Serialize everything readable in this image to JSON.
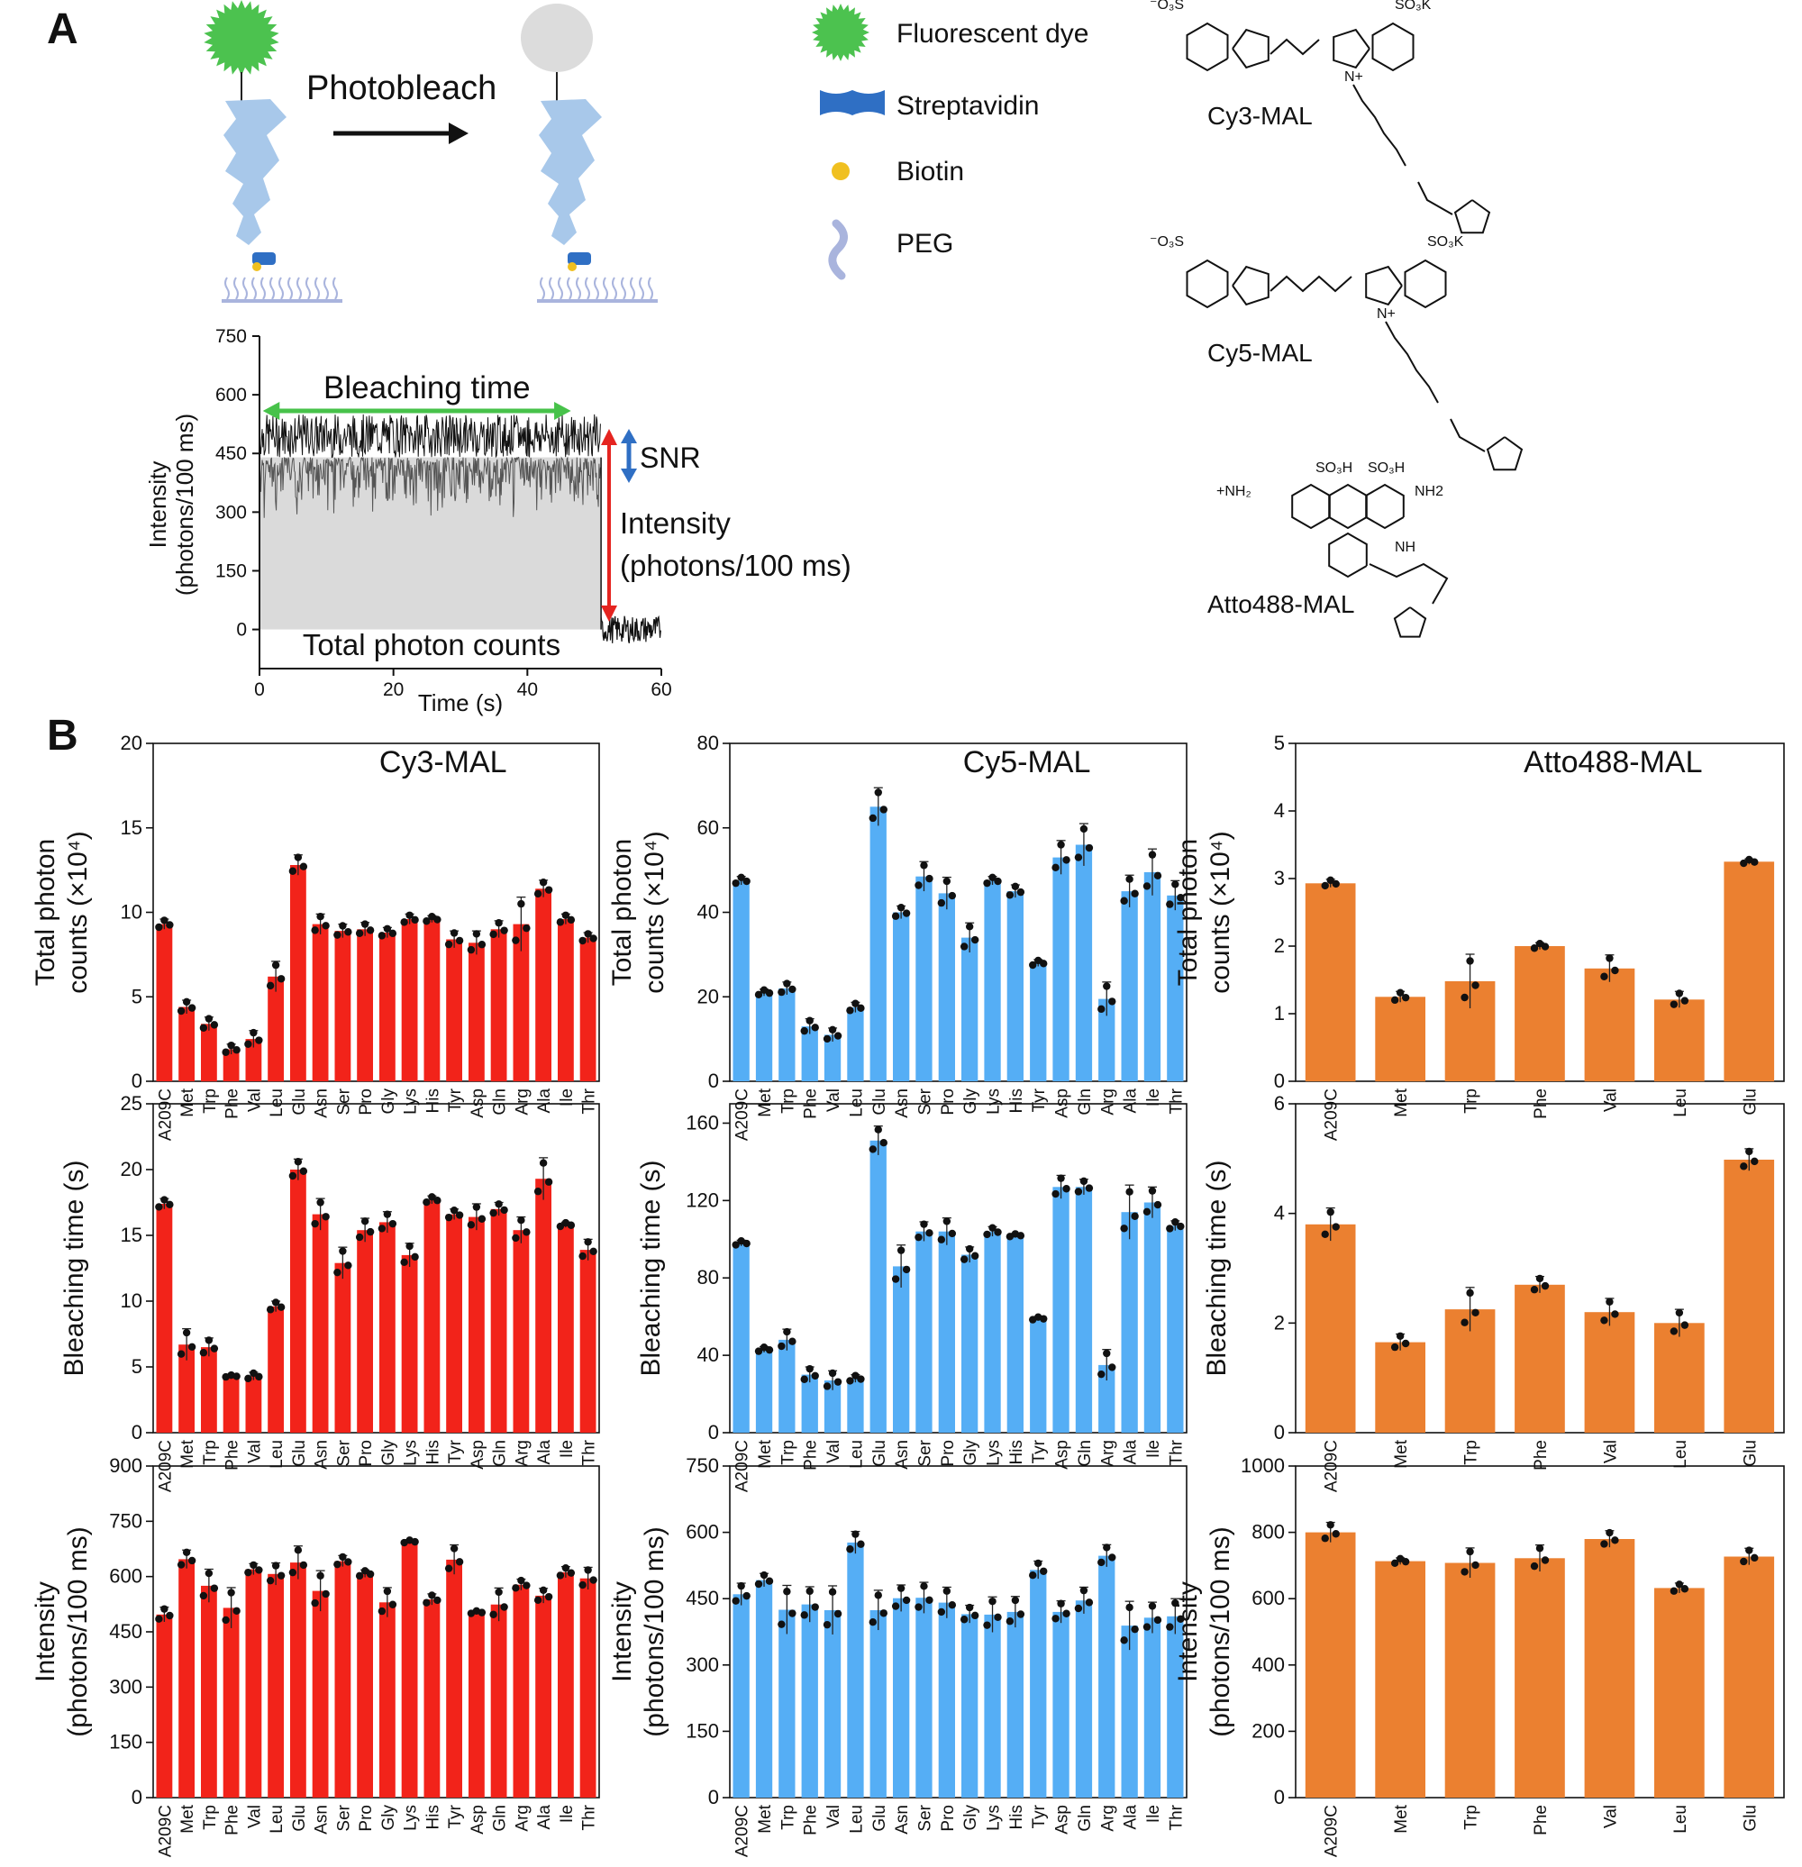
{
  "panel_labels": {
    "a": "A",
    "b": "B"
  },
  "schematic": {
    "arrow_label": "Photobleach",
    "legend": [
      {
        "icon": "star-icon",
        "label": "Fluorescent dye",
        "color": "#4cc24f"
      },
      {
        "icon": "streptavidin-icon",
        "label": "Streptavidin",
        "color": "#2f6fc4"
      },
      {
        "icon": "biotin-dot-icon",
        "label": "Biotin",
        "color": "#f0c020"
      },
      {
        "icon": "peg-chain-icon",
        "label": "PEG",
        "color": "#a9b4dd"
      }
    ],
    "bleached_color": "#dcdcdc",
    "protein_color": "#a8c8ea"
  },
  "structures": [
    {
      "name": "Cy3-MAL",
      "sulfo_left": "⁻O₃S",
      "sulfo_right": "SO₃K",
      "n_plus": "N+"
    },
    {
      "name": "Cy5-MAL",
      "sulfo_left": "⁻O₃S",
      "sulfo_right": "SO₃K",
      "n_plus": "N+"
    },
    {
      "name": "Atto488-MAL",
      "sulfo_left": "SO₃H",
      "sulfo_right": "SO₃H",
      "amine_left": "+NH₂",
      "amine_right": "NH2",
      "nh": "NH"
    }
  ],
  "trace_panel": {
    "xlabel": "Time (s)",
    "ylabel": "Intensity",
    "ylabel2": "(photons/100 ms)",
    "xticks": [
      0,
      20,
      40,
      60
    ],
    "yticks": [
      0,
      150,
      300,
      450,
      600,
      750
    ],
    "xlim": [
      0,
      60
    ],
    "ylim": [
      -100,
      750
    ],
    "bleach_time_s": 51,
    "mean_intensity": 440,
    "labels": {
      "bleaching_time": "Bleaching time",
      "snr": "SNR",
      "intensity": "Intensity",
      "intensity_units": "(photons/100 ms)",
      "total_counts": "Total photon counts"
    },
    "colors": {
      "bleach": "#47c24a",
      "snr": "#2f6fc4",
      "intensity": "#e52420",
      "fill": "#dadada"
    }
  },
  "chart_data": [
    {
      "type": "bar",
      "title": "Cy3-MAL",
      "ylabel": "Total photon",
      "ylabel2": "counts (×10⁴)",
      "ylim": [
        0,
        20
      ],
      "yticks": [
        0,
        5,
        10,
        15,
        20
      ],
      "color": "#f2231a",
      "categories": [
        "A209C",
        "Met",
        "Trp",
        "Phe",
        "Val",
        "Leu",
        "Glu",
        "Asn",
        "Ser",
        "Pro",
        "Gly",
        "Lys",
        "His",
        "Tyr",
        "Asp",
        "Gln",
        "Arg",
        "Ala",
        "Ile",
        "Thr"
      ],
      "values": [
        9.3,
        4.4,
        3.4,
        1.9,
        2.5,
        6.2,
        12.8,
        9.3,
        8.9,
        9.0,
        8.8,
        9.6,
        9.6,
        8.4,
        8.2,
        9.0,
        9.3,
        11.4,
        9.6,
        8.5
      ],
      "errors": [
        0.3,
        0.4,
        0.4,
        0.3,
        0.5,
        0.9,
        0.6,
        0.6,
        0.4,
        0.4,
        0.3,
        0.3,
        0.2,
        0.5,
        0.7,
        0.5,
        1.6,
        0.5,
        0.3,
        0.3
      ]
    },
    {
      "type": "bar",
      "title": "Cy5-MAL",
      "ylabel": "Total photon",
      "ylabel2": "counts (×10⁴)",
      "ylim": [
        0,
        80
      ],
      "yticks": [
        0,
        20,
        40,
        60,
        80
      ],
      "color": "#55aef5",
      "categories": [
        "A209C",
        "Met",
        "Trp",
        "Phe",
        "Val",
        "Leu",
        "Glu",
        "Asn",
        "Ser",
        "Pro",
        "Gly",
        "Lys",
        "His",
        "Tyr",
        "Asp",
        "Gln",
        "Arg",
        "Ala",
        "Ile",
        "Thr"
      ],
      "values": [
        47.5,
        21.0,
        22.0,
        13.0,
        11.0,
        17.5,
        65.0,
        40.0,
        48.5,
        44.5,
        34.0,
        47.5,
        45.0,
        28.0,
        53.0,
        56.0,
        19.5,
        45.0,
        49.5,
        44.0
      ],
      "errors": [
        1.0,
        0.8,
        1.5,
        1.8,
        1.6,
        1.2,
        4.5,
        1.5,
        3.5,
        3.8,
        3.5,
        1.0,
        1.5,
        0.8,
        4.0,
        5.0,
        4.0,
        3.8,
        5.5,
        3.5
      ]
    },
    {
      "type": "bar",
      "title": "Atto488-MAL",
      "ylabel": "Total photon",
      "ylabel2": "counts (×10⁴)",
      "ylim": [
        0,
        5
      ],
      "yticks": [
        0,
        1,
        2,
        3,
        4,
        5
      ],
      "color": "#eb8030",
      "categories": [
        "A209C",
        "Met",
        "Trp",
        "Phe",
        "Val",
        "Leu",
        "Glu"
      ],
      "values": [
        2.93,
        1.25,
        1.48,
        2.0,
        1.67,
        1.21,
        3.25
      ],
      "errors": [
        0.06,
        0.08,
        0.4,
        0.05,
        0.2,
        0.12,
        0.04
      ]
    },
    {
      "type": "bar",
      "title": "",
      "ylabel": "Bleaching time (s)",
      "ylim": [
        0,
        25
      ],
      "yticks": [
        0,
        5,
        10,
        15,
        20,
        25
      ],
      "color": "#f2231a",
      "categories": [
        "A209C",
        "Met",
        "Trp",
        "Phe",
        "Val",
        "Leu",
        "Glu",
        "Asn",
        "Ser",
        "Pro",
        "Gly",
        "Lys",
        "His",
        "Tyr",
        "Asp",
        "Gln",
        "Arg",
        "Ala",
        "Ile",
        "Thr"
      ],
      "values": [
        17.4,
        6.7,
        6.5,
        4.3,
        4.3,
        9.6,
        20.0,
        16.6,
        12.9,
        15.4,
        16.0,
        13.5,
        17.7,
        16.6,
        16.4,
        17.0,
        15.4,
        19.3,
        15.8,
        13.9
      ],
      "errors": [
        0.4,
        1.2,
        0.7,
        0.1,
        0.3,
        0.4,
        0.8,
        1.2,
        1.2,
        0.9,
        0.8,
        0.9,
        0.3,
        0.4,
        1.0,
        0.5,
        1.0,
        1.6,
        0.2,
        0.8
      ]
    },
    {
      "type": "bar",
      "title": "",
      "ylabel": "Bleaching time (s)",
      "ylim": [
        0,
        170
      ],
      "yticks": [
        0,
        40,
        80,
        120,
        160
      ],
      "color": "#55aef5",
      "categories": [
        "A209C",
        "Met",
        "Trp",
        "Phe",
        "Val",
        "Leu",
        "Glu",
        "Asn",
        "Ser",
        "Pro",
        "Gly",
        "Lys",
        "His",
        "Tyr",
        "Asp",
        "Gln",
        "Arg",
        "Ala",
        "Ile",
        "Thr"
      ],
      "values": [
        98,
        43,
        48,
        30,
        27,
        28,
        151,
        86,
        104,
        104,
        92,
        104,
        102,
        59,
        127,
        127,
        35,
        114,
        119,
        107
      ],
      "errors": [
        1.5,
        1.5,
        5.5,
        4.0,
        5.0,
        2.0,
        7.5,
        11.0,
        5.0,
        7.0,
        4.0,
        2.5,
        1.0,
        1.0,
        6.0,
        4.0,
        8.0,
        14.0,
        8.0,
        2.5
      ]
    },
    {
      "type": "bar",
      "title": "",
      "ylabel": "Bleaching time (s)",
      "ylim": [
        0,
        6
      ],
      "yticks": [
        0,
        2,
        4,
        6
      ],
      "color": "#eb8030",
      "categories": [
        "A209C",
        "Met",
        "Trp",
        "Phe",
        "Val",
        "Leu",
        "Glu"
      ],
      "values": [
        3.8,
        1.65,
        2.25,
        2.7,
        2.2,
        2.0,
        4.98
      ],
      "errors": [
        0.3,
        0.15,
        0.4,
        0.15,
        0.25,
        0.25,
        0.2
      ]
    },
    {
      "type": "bar",
      "title": "",
      "ylabel": "Intensity",
      "ylabel2": "(photons/100 ms)",
      "ylim": [
        0,
        900
      ],
      "yticks": [
        0,
        150,
        300,
        450,
        600,
        750,
        900
      ],
      "color": "#f2231a",
      "categories": [
        "A209C",
        "Met",
        "Trp",
        "Phe",
        "Val",
        "Leu",
        "Glu",
        "Asn",
        "Ser",
        "Pro",
        "Gly",
        "Lys",
        "His",
        "Tyr",
        "Asp",
        "Gln",
        "Arg",
        "Ala",
        "Ile",
        "Thr"
      ],
      "values": [
        497,
        647,
        575,
        515,
        620,
        607,
        638,
        561,
        642,
        608,
        530,
        695,
        538,
        646,
        503,
        524,
        578,
        548,
        612,
        595
      ],
      "errors": [
        20,
        25,
        45,
        55,
        15,
        30,
        45,
        55,
        15,
        10,
        40,
        5,
        15,
        40,
        5,
        45,
        15,
        20,
        15,
        30
      ]
    },
    {
      "type": "bar",
      "title": "",
      "ylabel": "Intensity",
      "ylabel2": "(photons/100 ms)",
      "ylim": [
        0,
        750
      ],
      "yticks": [
        0,
        150,
        300,
        450,
        600,
        750
      ],
      "color": "#55aef5",
      "categories": [
        "A209C",
        "Met",
        "Trp",
        "Phe",
        "Val",
        "Leu",
        "Glu",
        "Asn",
        "Ser",
        "Pro",
        "Gly",
        "Lys",
        "His",
        "Tyr",
        "Asp",
        "Gln",
        "Arg",
        "Ala",
        "Ile",
        "Thr"
      ],
      "values": [
        460,
        492,
        425,
        437,
        424,
        577,
        424,
        451,
        452,
        441,
        415,
        414,
        420,
        515,
        420,
        446,
        547,
        389,
        407,
        410
      ],
      "errors": [
        25,
        15,
        55,
        40,
        55,
        25,
        45,
        30,
        35,
        35,
        20,
        40,
        35,
        20,
        25,
        30,
        25,
        55,
        35,
        40
      ]
    },
    {
      "type": "bar",
      "title": "",
      "ylabel": "Intensity",
      "ylabel2": "(photons/100 ms)",
      "ylim": [
        0,
        1000
      ],
      "yticks": [
        0,
        200,
        400,
        600,
        800,
        1000
      ],
      "color": "#eb8030",
      "categories": [
        "A209C",
        "Met",
        "Trp",
        "Phe",
        "Val",
        "Leu",
        "Glu"
      ],
      "values": [
        800,
        713,
        708,
        722,
        780,
        632,
        727
      ],
      "errors": [
        30,
        10,
        45,
        40,
        25,
        15,
        25
      ]
    }
  ]
}
